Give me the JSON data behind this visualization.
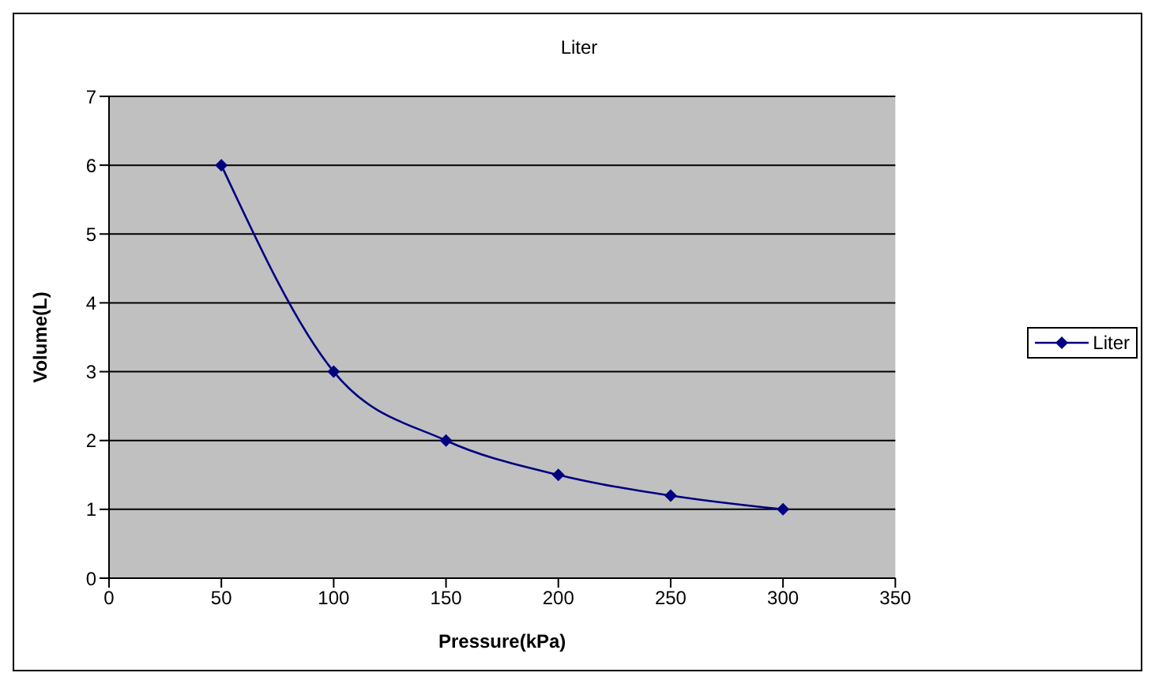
{
  "chart_data": {
    "type": "line",
    "title": "Liter",
    "xlabel": "Pressure(kPa)",
    "ylabel": "Volume(L)",
    "x": [
      50,
      100,
      150,
      200,
      250,
      300
    ],
    "series": [
      {
        "name": "Liter",
        "color": "#000080",
        "values": [
          6,
          3,
          2,
          1.5,
          1.2,
          1
        ]
      }
    ],
    "xlim": [
      0,
      350
    ],
    "xticks": [
      0,
      50,
      100,
      150,
      200,
      250,
      300,
      350
    ],
    "ylim": [
      0,
      7
    ],
    "yticks": [
      0,
      1,
      2,
      3,
      4,
      5,
      6,
      7
    ],
    "grid": "y",
    "legend": "right",
    "marker": "diamond",
    "line_style": "solid"
  }
}
